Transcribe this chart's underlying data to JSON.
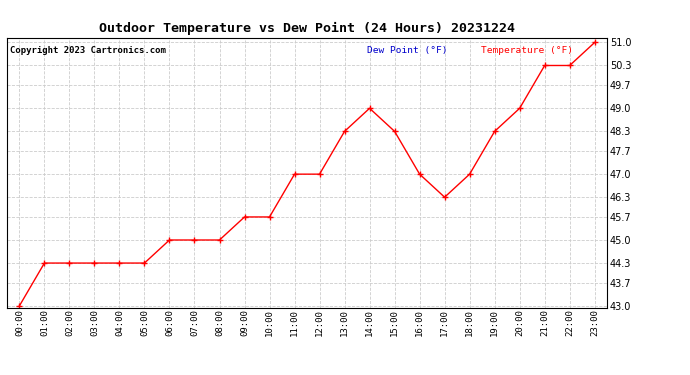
{
  "title": "Outdoor Temperature vs Dew Point (24 Hours) 20231224",
  "copyright": "Copyright 2023 Cartronics.com",
  "legend_dew": "Dew Point (°F)",
  "legend_temp": "Temperature (°F)",
  "hours": [
    "00:00",
    "01:00",
    "02:00",
    "03:00",
    "04:00",
    "05:00",
    "06:00",
    "07:00",
    "08:00",
    "09:00",
    "10:00",
    "11:00",
    "12:00",
    "13:00",
    "14:00",
    "15:00",
    "16:00",
    "17:00",
    "18:00",
    "19:00",
    "20:00",
    "21:00",
    "22:00",
    "23:00"
  ],
  "temperature": [
    43.0,
    44.3,
    44.3,
    44.3,
    44.3,
    44.3,
    45.0,
    45.0,
    45.0,
    45.7,
    45.7,
    47.0,
    47.0,
    48.3,
    49.0,
    48.3,
    47.0,
    46.3,
    47.0,
    48.3,
    49.0,
    50.3,
    50.3,
    51.0
  ],
  "ylim_min": 43.0,
  "ylim_max": 51.0,
  "yticks": [
    43.0,
    43.7,
    44.3,
    45.0,
    45.7,
    46.3,
    47.0,
    47.7,
    48.3,
    49.0,
    49.7,
    50.3,
    51.0
  ],
  "temp_color": "#ff0000",
  "dew_color": "#0000cc",
  "grid_color": "#cccccc",
  "bg_color": "#ffffff",
  "title_color": "#000000",
  "copyright_color": "#000000",
  "legend_dew_color": "#0000cc",
  "legend_temp_color": "#ff0000"
}
